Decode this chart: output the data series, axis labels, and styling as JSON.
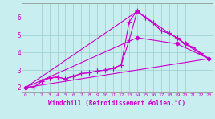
{
  "background_color": "#c8eef0",
  "grid_color": "#99cccc",
  "line_color": "#cc00cc",
  "xlabel": "Windchill (Refroidissement éolien,°C)",
  "xlim": [
    -0.5,
    23.5
  ],
  "ylim": [
    1.7,
    6.8
  ],
  "xticks": [
    0,
    1,
    2,
    3,
    4,
    5,
    6,
    7,
    8,
    9,
    10,
    11,
    12,
    13,
    14,
    15,
    16,
    17,
    18,
    19,
    20,
    21,
    22,
    23
  ],
  "yticks": [
    2,
    3,
    4,
    5,
    6
  ],
  "series": [
    {
      "x": [
        0,
        1,
        2,
        3,
        4,
        5,
        6,
        7,
        8,
        9,
        10,
        11,
        12,
        13,
        14,
        15,
        16,
        17,
        18,
        19,
        20,
        21,
        22,
        23
      ],
      "y": [
        2.0,
        2.0,
        2.35,
        2.55,
        2.6,
        2.5,
        2.65,
        2.8,
        2.85,
        2.95,
        3.0,
        3.1,
        3.3,
        4.7,
        6.35,
        6.0,
        5.7,
        5.25,
        5.1,
        4.85,
        4.5,
        4.3,
        3.95,
        3.65
      ],
      "marker": "+",
      "markersize": 4,
      "lw": 0.8
    },
    {
      "x": [
        0,
        1,
        2,
        3,
        4,
        5,
        6,
        7,
        8,
        9,
        10,
        11,
        12,
        13,
        14,
        15,
        16,
        17,
        18,
        19,
        20,
        21,
        22,
        23
      ],
      "y": [
        2.0,
        2.0,
        2.35,
        2.55,
        2.6,
        2.5,
        2.65,
        2.8,
        2.85,
        2.95,
        3.0,
        3.1,
        3.3,
        5.75,
        6.4,
        6.0,
        5.7,
        5.25,
        5.1,
        4.85,
        4.5,
        4.3,
        3.95,
        3.65
      ],
      "marker": "+",
      "markersize": 4,
      "lw": 0.8
    },
    {
      "x": [
        0,
        14,
        19,
        23
      ],
      "y": [
        2.0,
        4.85,
        4.5,
        3.65
      ],
      "marker": "D",
      "markersize": 2.5,
      "lw": 0.8
    },
    {
      "x": [
        0,
        14,
        20,
        23
      ],
      "y": [
        2.0,
        6.35,
        4.5,
        3.65
      ],
      "marker": "D",
      "markersize": 2.5,
      "lw": 0.8
    },
    {
      "x": [
        0,
        23
      ],
      "y": [
        2.0,
        3.65
      ],
      "marker": null,
      "markersize": 0,
      "lw": 0.8
    }
  ]
}
